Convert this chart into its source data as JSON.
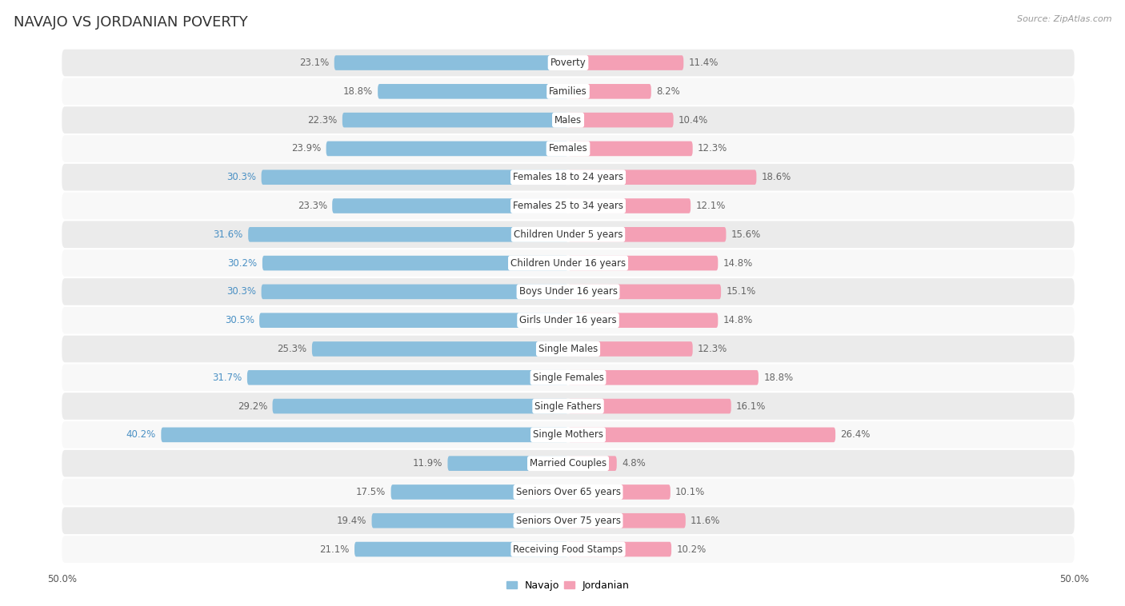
{
  "title": "NAVAJO VS JORDANIAN POVERTY",
  "source": "Source: ZipAtlas.com",
  "categories": [
    "Poverty",
    "Families",
    "Males",
    "Females",
    "Females 18 to 24 years",
    "Females 25 to 34 years",
    "Children Under 5 years",
    "Children Under 16 years",
    "Boys Under 16 years",
    "Girls Under 16 years",
    "Single Males",
    "Single Females",
    "Single Fathers",
    "Single Mothers",
    "Married Couples",
    "Seniors Over 65 years",
    "Seniors Over 75 years",
    "Receiving Food Stamps"
  ],
  "navajo": [
    23.1,
    18.8,
    22.3,
    23.9,
    30.3,
    23.3,
    31.6,
    30.2,
    30.3,
    30.5,
    25.3,
    31.7,
    29.2,
    40.2,
    11.9,
    17.5,
    19.4,
    21.1
  ],
  "jordanian": [
    11.4,
    8.2,
    10.4,
    12.3,
    18.6,
    12.1,
    15.6,
    14.8,
    15.1,
    14.8,
    12.3,
    18.8,
    16.1,
    26.4,
    4.8,
    10.1,
    11.6,
    10.2
  ],
  "navajo_color": "#8BBFDD",
  "jordanian_color": "#F4A0B5",
  "navajo_label_color_default": "#666666",
  "navajo_label_color_highlight": "#4A90C4",
  "background_row_light": "#EBEBEB",
  "background_row_white": "#F8F8F8",
  "bar_height": 0.52,
  "axis_limit": 50.0,
  "title_fontsize": 13,
  "label_fontsize": 8.5,
  "category_fontsize": 8.5
}
